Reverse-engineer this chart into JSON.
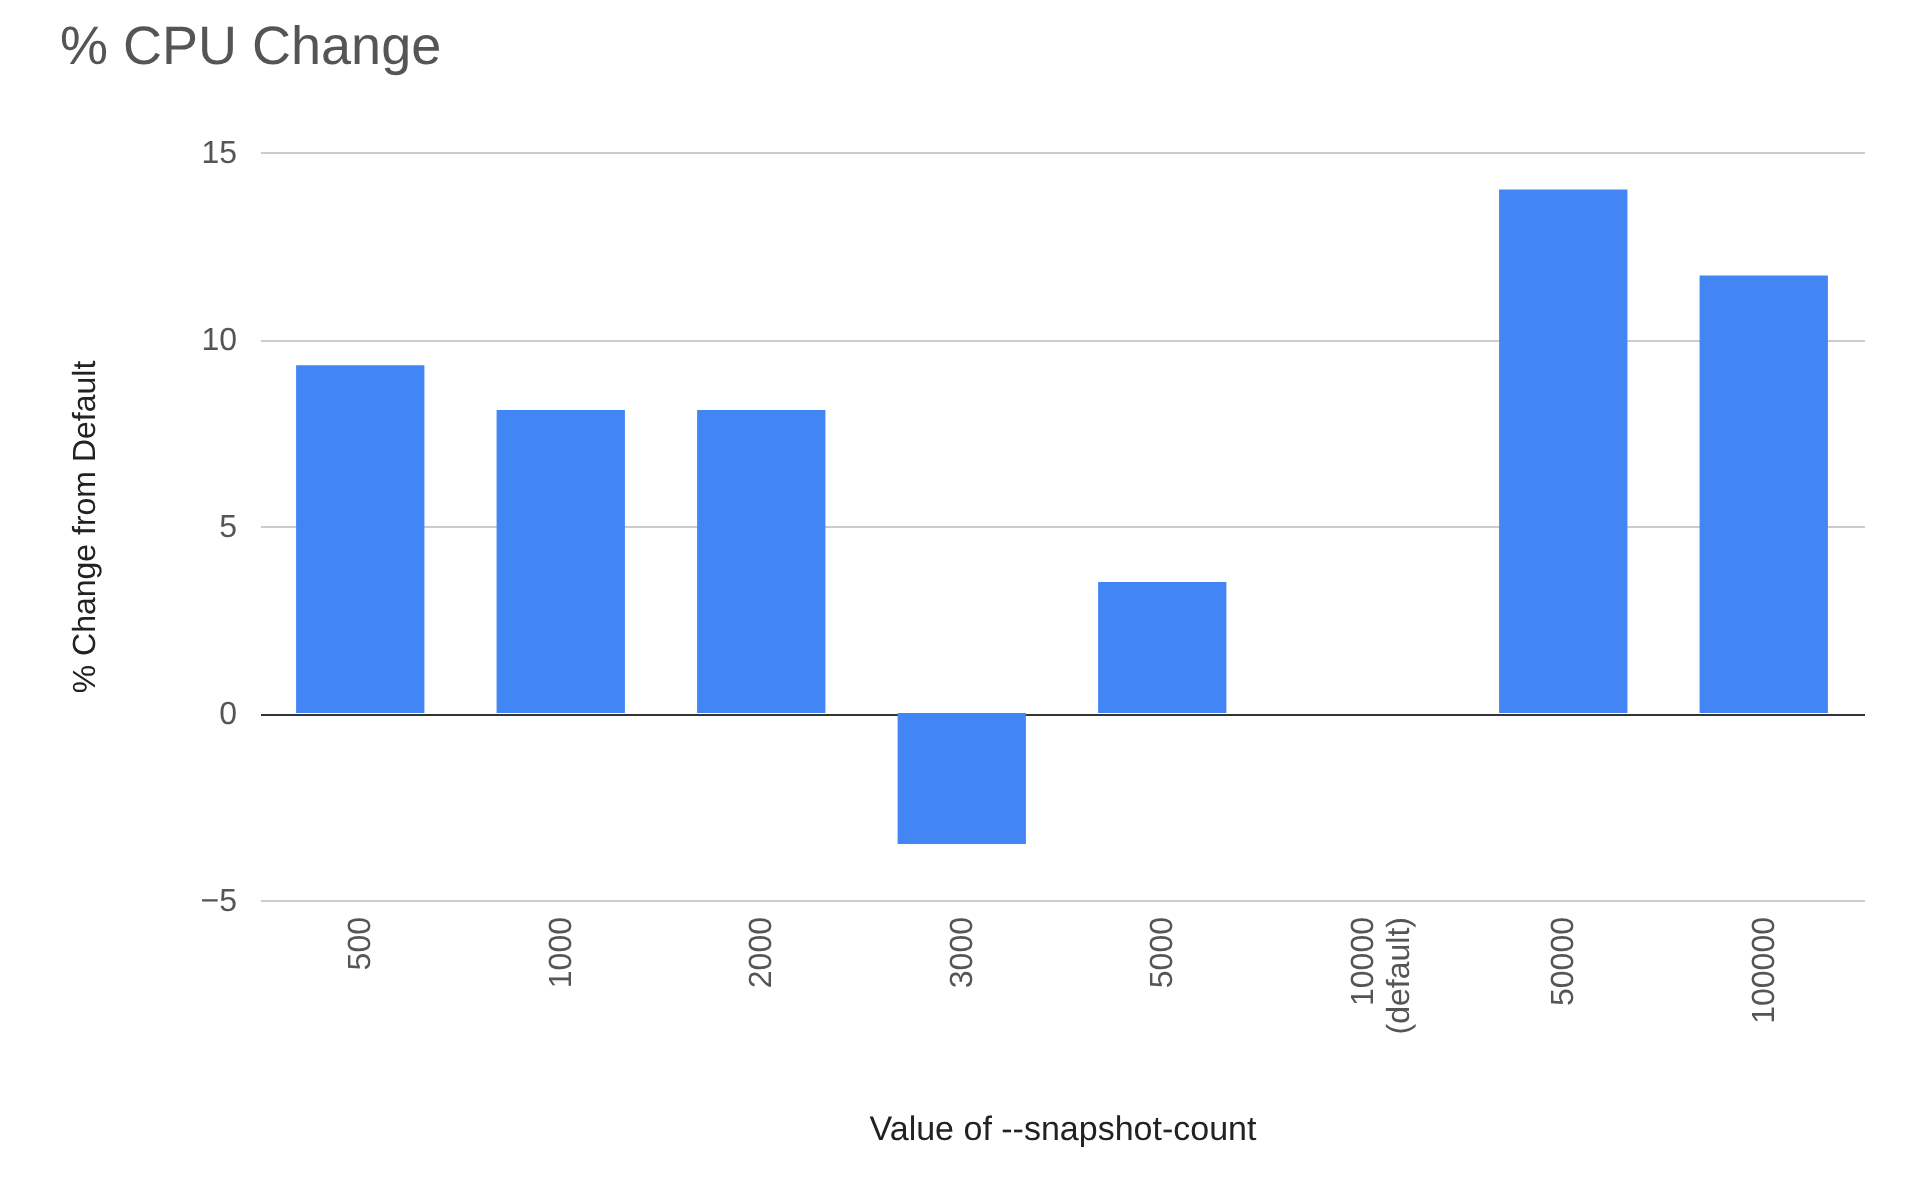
{
  "chart_data": {
    "type": "bar",
    "title": "% CPU Change",
    "xlabel": "Value of --snapshot-count",
    "ylabel": "% Change from Default",
    "categories": [
      "500",
      "1000",
      "2000",
      "3000",
      "5000",
      "10000\n(default)",
      "50000",
      "100000"
    ],
    "values": [
      9.3,
      8.1,
      8.1,
      -3.5,
      3.5,
      0,
      14.0,
      11.7
    ],
    "color": "#4285f4",
    "ylim": [
      -5,
      15
    ],
    "yticks": [
      -5,
      0,
      5,
      10,
      15
    ],
    "grid": "y"
  }
}
